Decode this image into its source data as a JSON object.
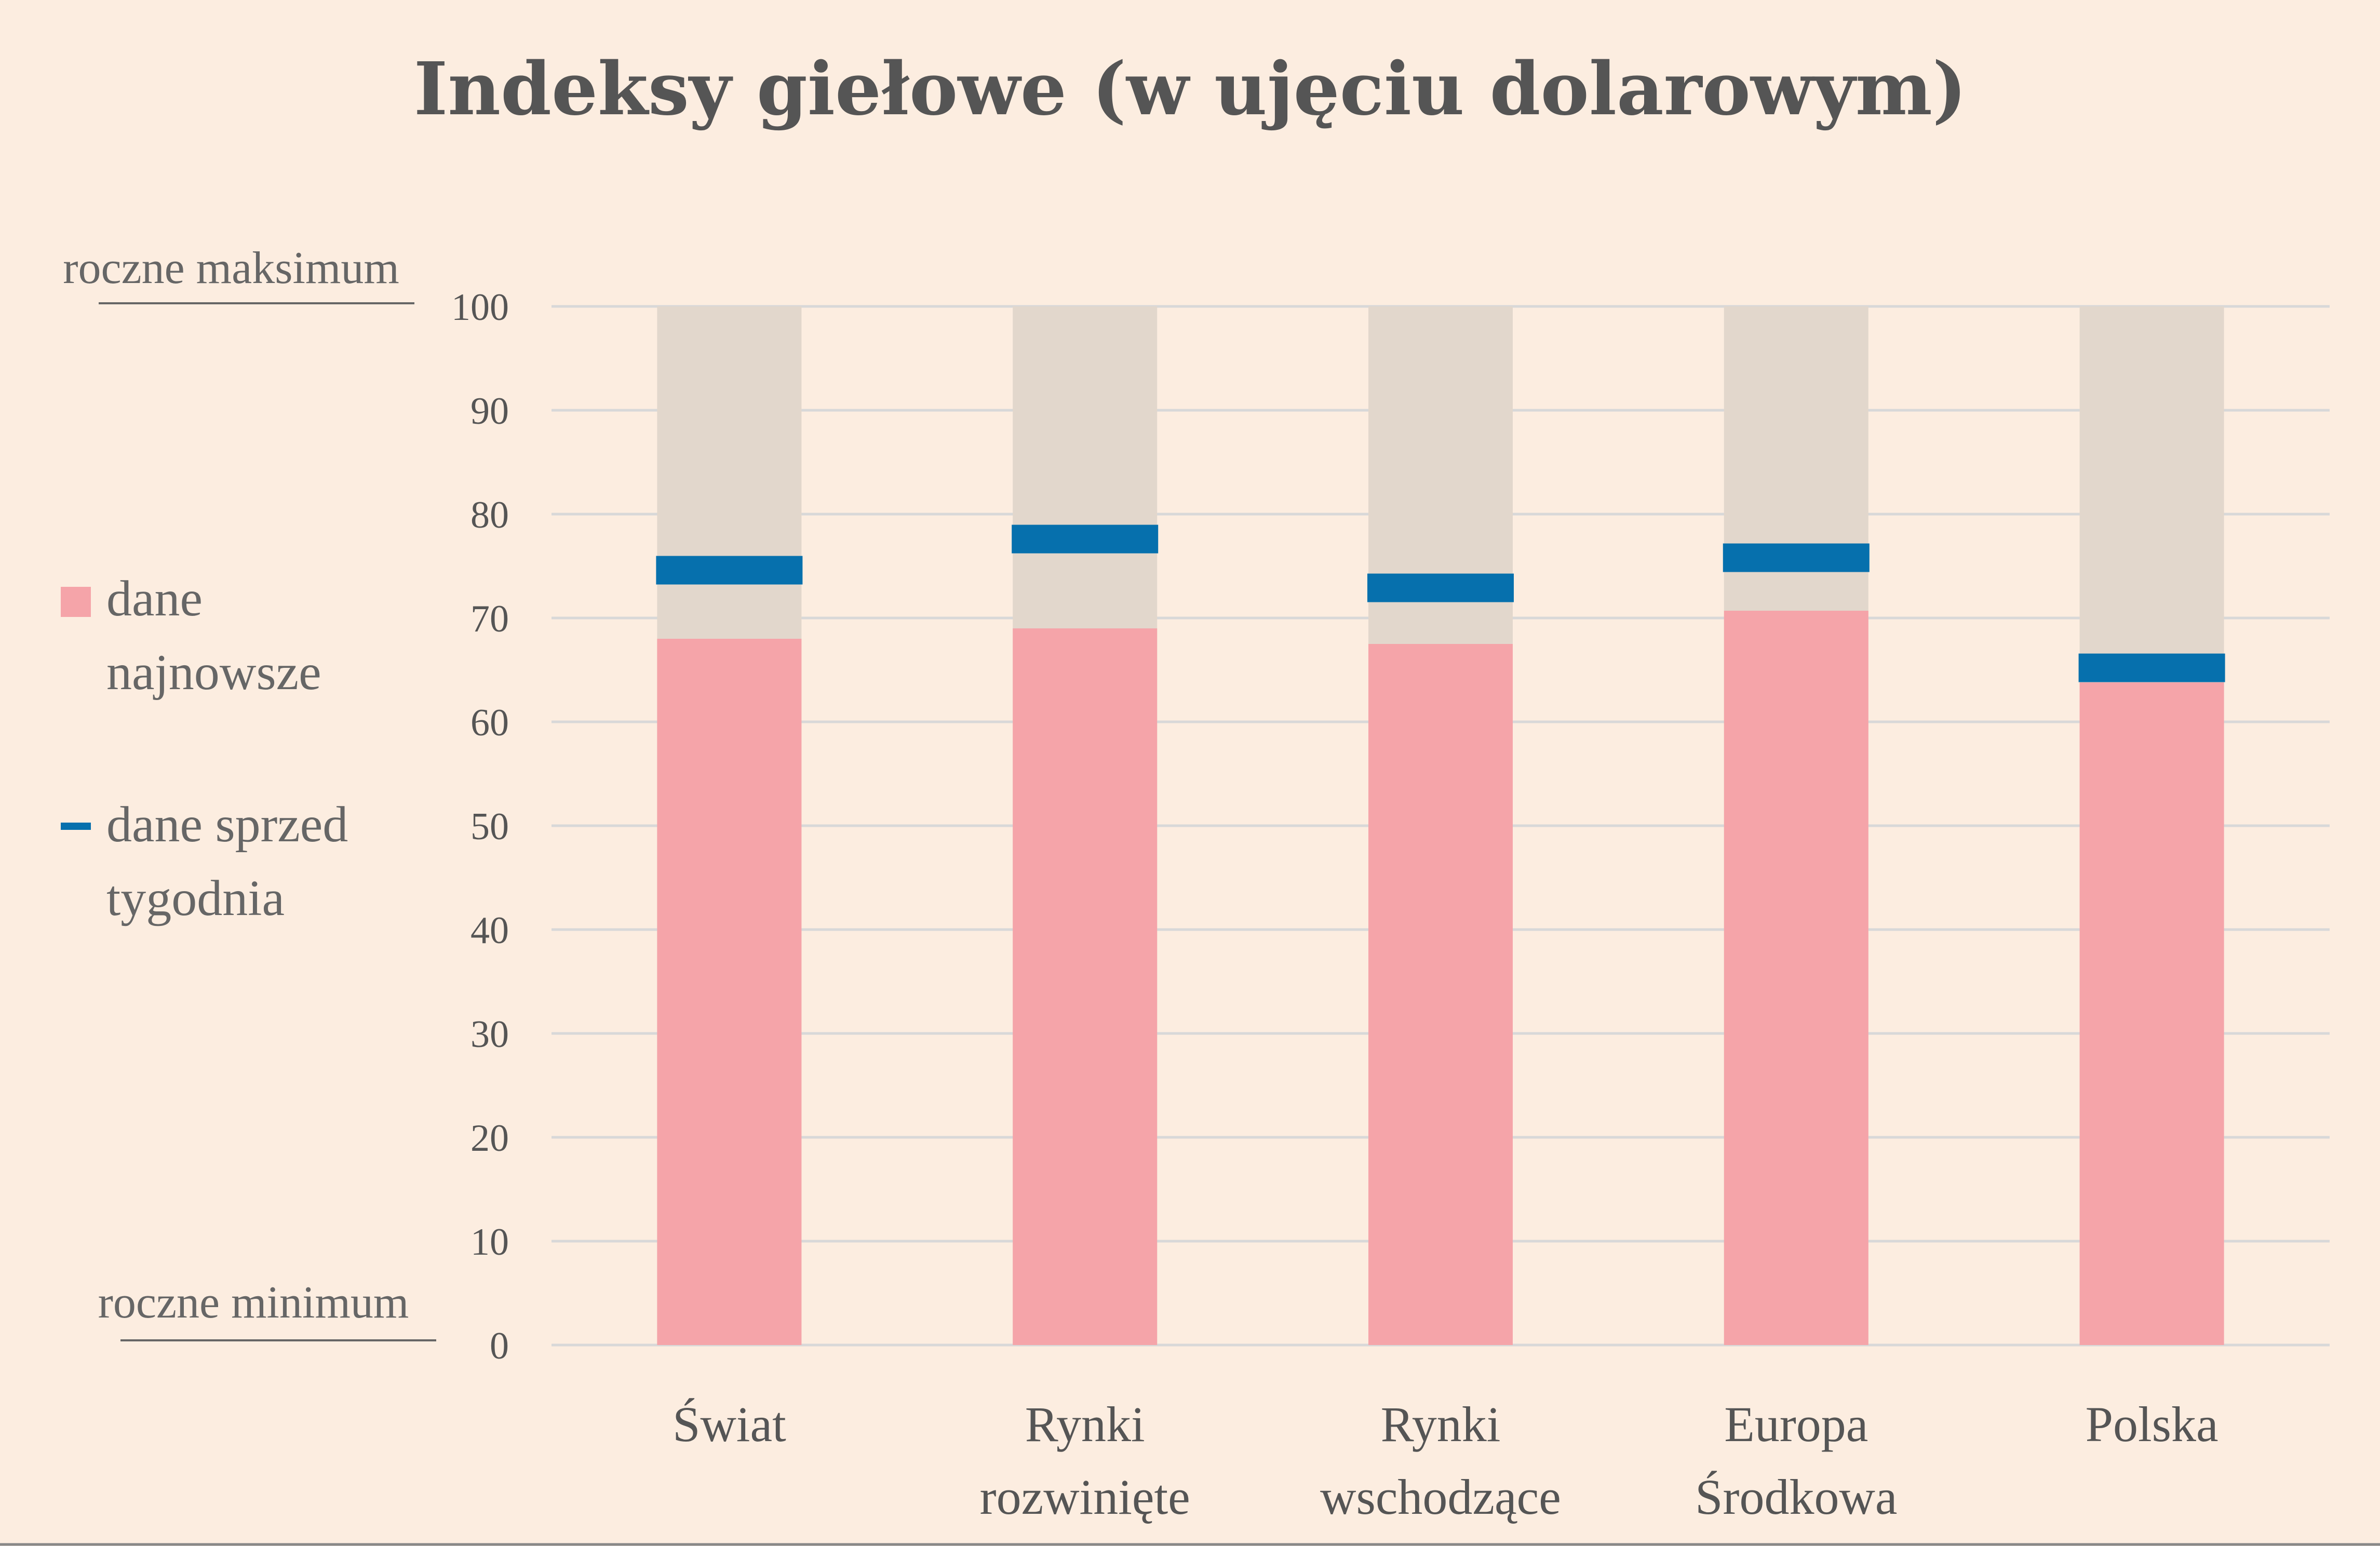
{
  "chart_data": {
    "type": "bar",
    "title": "Indeksy giełowe (w ujęciu dolarowym)",
    "categories": [
      [
        "Świat"
      ],
      [
        "Rynki",
        "rozwinięte"
      ],
      [
        "Rynki",
        "wschodzące"
      ],
      [
        "Europa",
        "Środkowa"
      ],
      [
        "Polska"
      ]
    ],
    "series": [
      {
        "name": "dane najnowsze",
        "values": [
          68,
          69,
          67.5,
          70.7,
          63.8
        ]
      },
      {
        "name": "dane sprzed tygodnia",
        "values": [
          74.6,
          77.6,
          72.9,
          75.8,
          65.2
        ]
      }
    ],
    "range_max": 100,
    "ylim": [
      0,
      100
    ],
    "yticks": [
      0,
      10,
      20,
      30,
      40,
      50,
      60,
      70,
      80,
      90,
      100
    ],
    "grid": true,
    "legend": {
      "position": "left",
      "items": [
        {
          "lines": [
            "dane",
            "najnowsze"
          ],
          "swatch": "square"
        },
        {
          "lines": [
            "dane sprzed",
            "tygodnia"
          ],
          "swatch": "dash"
        }
      ]
    },
    "annotations": {
      "top": "roczne maksimum",
      "bottom": "roczne minimum"
    },
    "colors": {
      "background": "#fcede0",
      "range": "#e2d7cc",
      "latest": "#f5a4a9",
      "week_ago": "#0670ad",
      "grid": "#d8d8d8",
      "text": "#555555"
    }
  }
}
